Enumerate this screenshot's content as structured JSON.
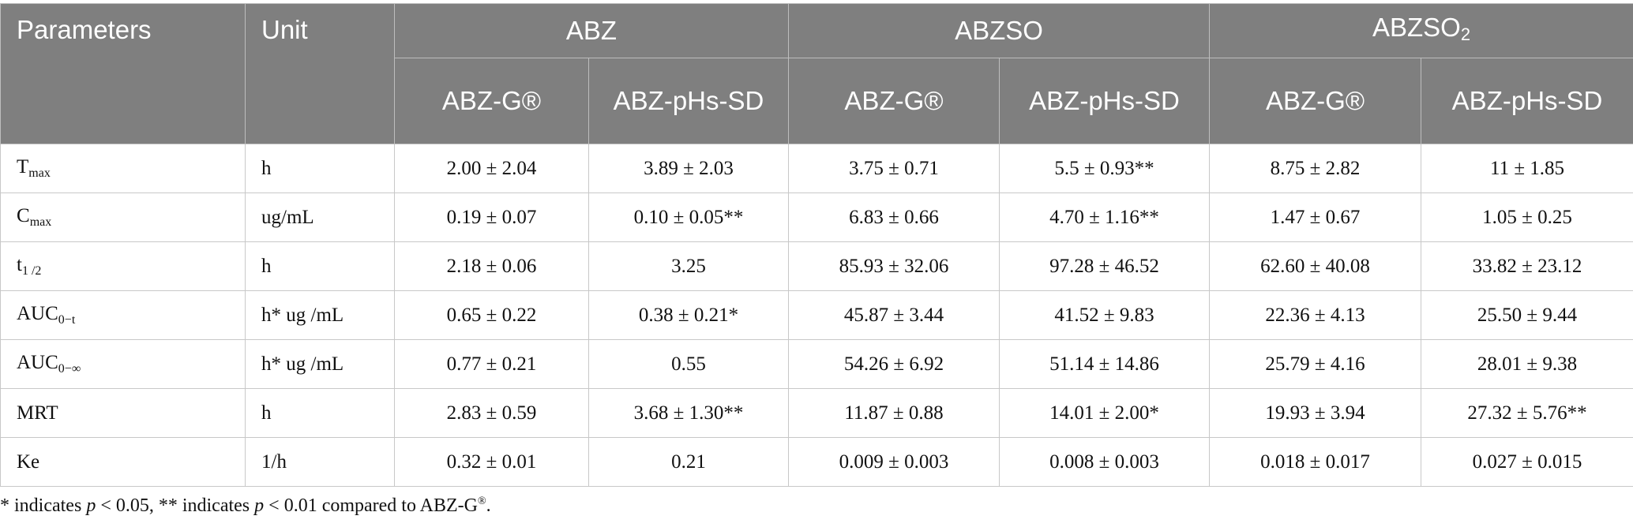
{
  "table": {
    "header": {
      "parameters": "Parameters",
      "unit": "Unit",
      "groups": [
        {
          "main": "ABZ"
        },
        {
          "main": "ABZSO"
        },
        {
          "main": "ABZSO",
          "sub": "2"
        }
      ],
      "subheaders": [
        "ABZ-G®",
        "ABZ-pHs-SD",
        "ABZ-G®",
        "ABZ-pHs-SD",
        "ABZ-G®",
        "ABZ-pHs-SD"
      ]
    },
    "rows": [
      {
        "param": {
          "main": "T",
          "sub": "max"
        },
        "unit": "h",
        "values": [
          "2.00 ± 2.04",
          "3.89 ± 2.03",
          "3.75 ± 0.71",
          "5.5 ± 0.93**",
          "8.75 ± 2.82",
          "11 ± 1.85"
        ]
      },
      {
        "param": {
          "main": "C",
          "sub": "max"
        },
        "unit": "ug/mL",
        "values": [
          "0.19 ± 0.07",
          "0.10 ± 0.05**",
          "6.83 ± 0.66",
          "4.70 ± 1.16**",
          "1.47 ± 0.67",
          "1.05 ± 0.25"
        ]
      },
      {
        "param": {
          "main": "t",
          "sub": "1 /2"
        },
        "unit": "h",
        "values": [
          "2.18 ± 0.06",
          "3.25",
          "85.93 ± 32.06",
          "97.28 ± 46.52",
          "62.60 ± 40.08",
          "33.82 ± 23.12"
        ]
      },
      {
        "param": {
          "main": "AUC",
          "sub": "0−t"
        },
        "unit": "h* ug /mL",
        "values": [
          "0.65 ± 0.22",
          "0.38 ± 0.21*",
          "45.87 ± 3.44",
          "41.52 ± 9.83",
          "22.36 ± 4.13",
          "25.50 ± 9.44"
        ]
      },
      {
        "param": {
          "main": "AUC",
          "sub": "0−∞"
        },
        "unit": "h* ug /mL",
        "values": [
          "0.77 ± 0.21",
          "0.55",
          "54.26 ± 6.92",
          "51.14 ± 14.86",
          "25.79 ± 4.16",
          "28.01 ± 9.38"
        ]
      },
      {
        "param": {
          "main": "MRT"
        },
        "unit": "h",
        "values": [
          "2.83 ± 0.59",
          "3.68 ± 1.30**",
          "11.87 ± 0.88",
          "14.01 ± 2.00*",
          "19.93 ± 3.94",
          "27.32 ± 5.76**"
        ]
      },
      {
        "param": {
          "main": "Ke"
        },
        "unit": "1/h",
        "values": [
          "0.32 ± 0.01",
          "0.21",
          "0.009 ± 0.003",
          "0.008 ± 0.003",
          "0.018 ± 0.017",
          "0.027 ± 0.015"
        ]
      }
    ]
  },
  "footnote": [
    "* indicates ",
    "p",
    " < 0.05, ** indicates ",
    "p",
    " < 0.01 compared to ABZ-G",
    "®",
    "."
  ]
}
